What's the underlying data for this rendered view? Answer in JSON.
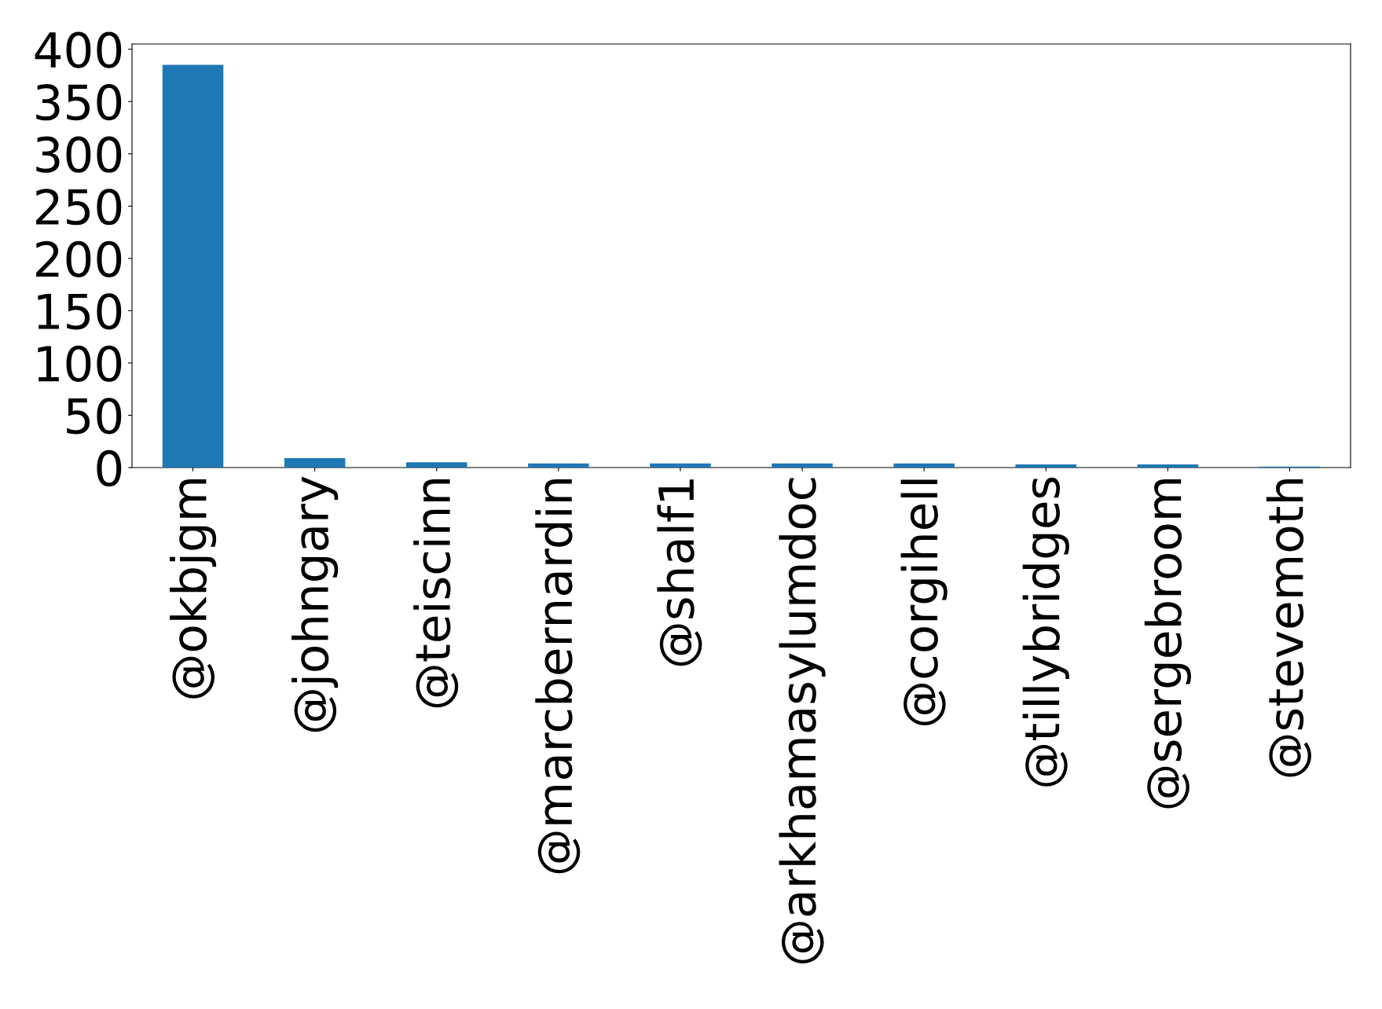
{
  "chart_data": {
    "type": "bar",
    "categories": [
      "@okbjgm",
      "@johngary",
      "@teiscinn",
      "@marcbernardin",
      "@shalf1",
      "@arkhamasylumdoc",
      "@corgihell",
      "@tillybridges",
      "@sergebroom",
      "@stevemoth"
    ],
    "values": [
      385,
      9,
      5,
      4,
      4,
      4,
      4,
      3,
      3,
      1
    ],
    "color": "#1f77b4",
    "ylim": [
      0,
      405
    ],
    "yticks": [
      0,
      50,
      100,
      150,
      200,
      250,
      300,
      350,
      400
    ],
    "grid": false,
    "legend": false
  }
}
